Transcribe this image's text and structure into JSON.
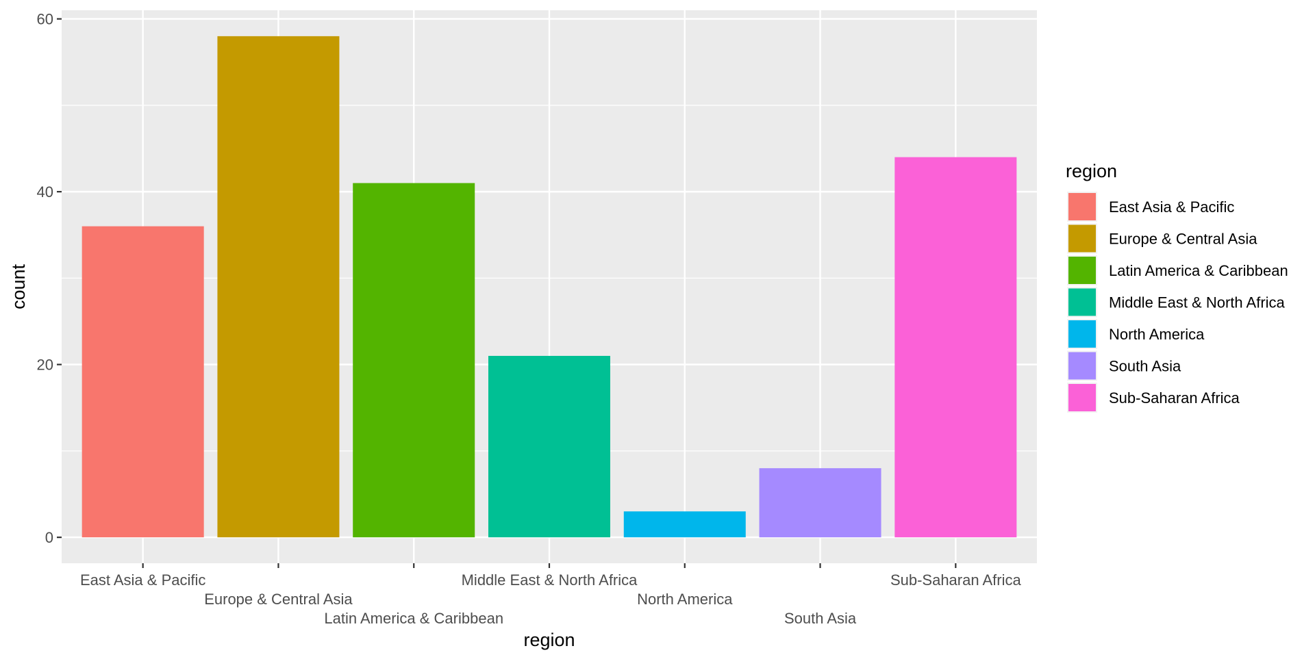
{
  "chart_data": {
    "type": "bar",
    "categories": [
      "East Asia & Pacific",
      "Europe & Central Asia",
      "Latin America & Caribbean",
      "Middle East & North Africa",
      "North America",
      "South Asia",
      "Sub-Saharan Africa"
    ],
    "values": [
      36,
      58,
      41,
      21,
      3,
      8,
      44
    ],
    "colors": [
      "#F8766D",
      "#C49A00",
      "#53B400",
      "#00C094",
      "#00B6EB",
      "#A58AFF",
      "#FB61D7"
    ],
    "xlabel": "region",
    "ylabel": "count",
    "ylim": [
      -3,
      61
    ],
    "yticks": [
      0,
      20,
      40,
      60
    ],
    "grid": true,
    "legend": {
      "title": "region",
      "placement": "right",
      "items": [
        "East Asia & Pacific",
        "Europe & Central Asia",
        "Latin America & Caribbean",
        "Middle East & North Africa",
        "North America",
        "South Asia",
        "Sub-Saharan Africa"
      ]
    }
  }
}
